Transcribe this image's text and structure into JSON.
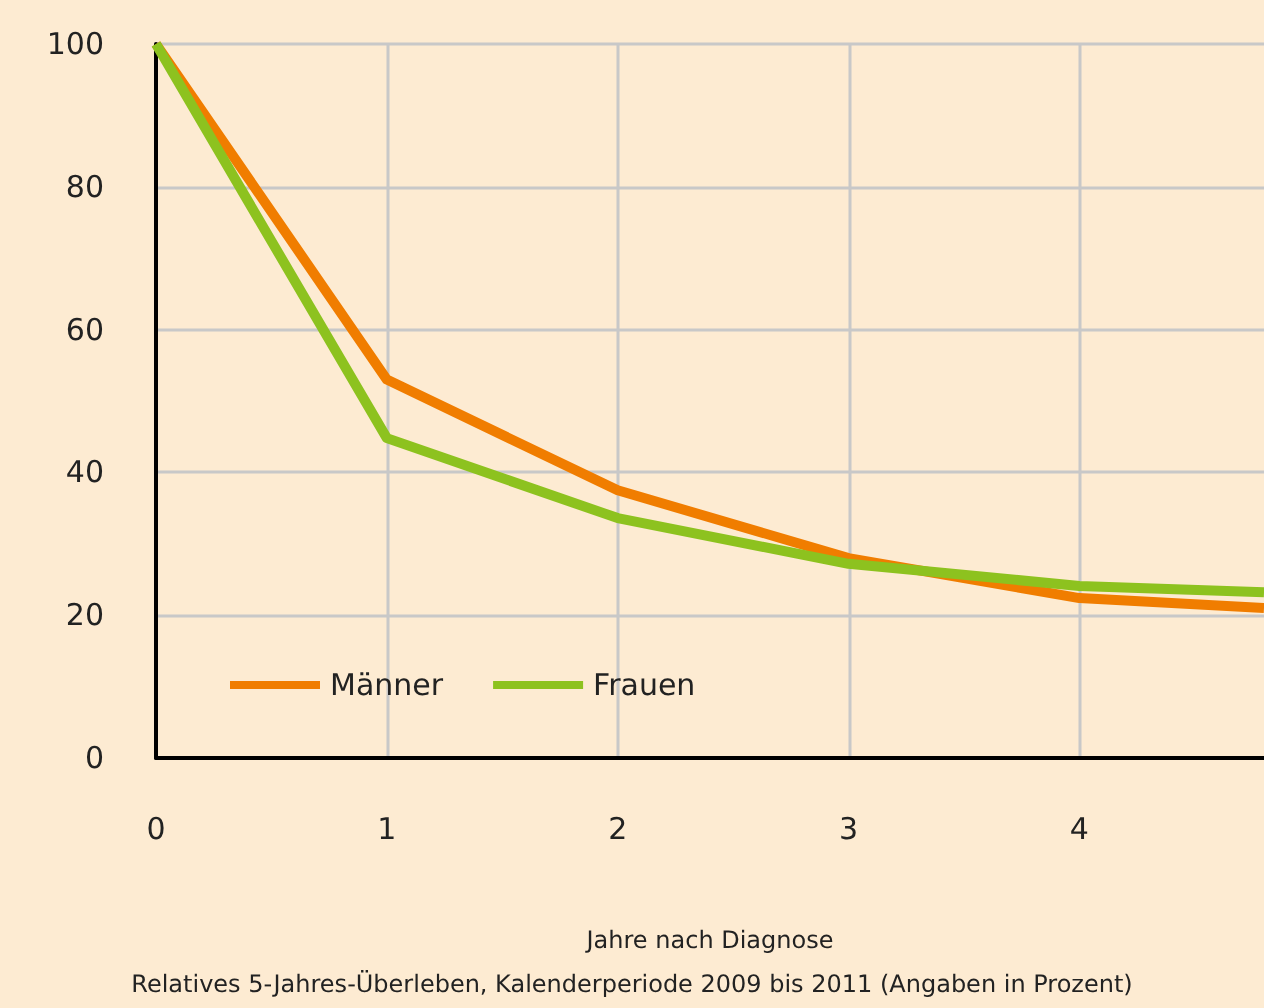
{
  "chart_data": {
    "type": "line",
    "xlabel": "Jahre nach Diagnose",
    "annotations": [
      "Relatives 5-Jahres-Überleben, Kalenderperiode 2009 bis 2011 (Angaben in Prozent)"
    ],
    "x": [
      0,
      1,
      2,
      3,
      4,
      4.8
    ],
    "series": [
      {
        "name": "Männer",
        "color": "#f07d00",
        "values": [
          100,
          53,
          37.5,
          28,
          22.4,
          21
        ]
      },
      {
        "name": "Frauen",
        "color": "#8dc21f",
        "values": [
          100,
          44.8,
          33.6,
          27.2,
          24.1,
          23.2
        ]
      }
    ],
    "xlim": [
      0,
      4.8
    ],
    "xticks": [
      0,
      1,
      2,
      3,
      4
    ],
    "ylim": [
      0,
      100
    ],
    "yticks": [
      0,
      20,
      40,
      60,
      80,
      100
    ],
    "grid": true,
    "legend": "bottom left",
    "marker": "none",
    "line_style": "solid"
  }
}
